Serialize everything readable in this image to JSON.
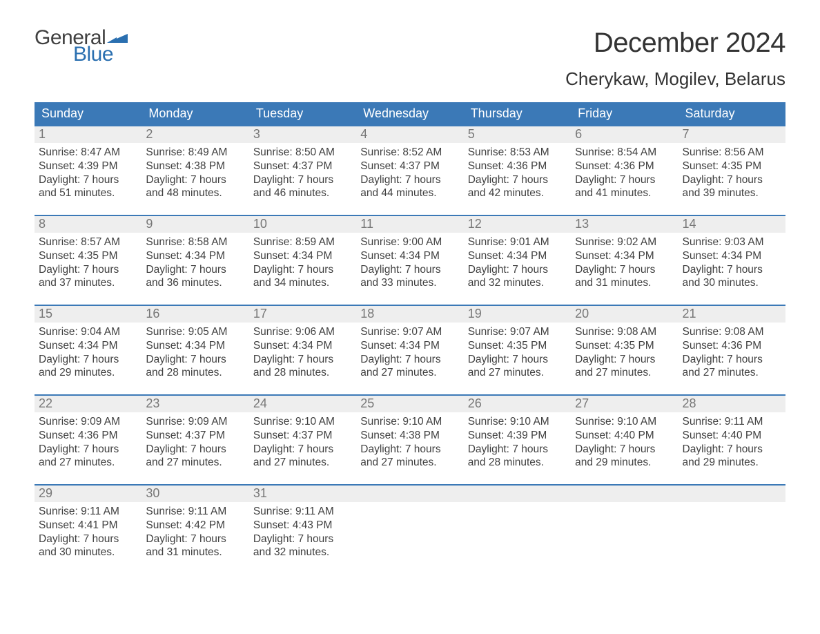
{
  "logo": {
    "general": "General",
    "blue": "Blue",
    "accent_color": "#2a6fb0"
  },
  "title": "December 2024",
  "location": "Cherykaw, Mogilev, Belarus",
  "colors": {
    "header_bg": "#3b79b7",
    "header_text": "#ffffff",
    "daynum_bg": "#eeeeee",
    "daynum_text": "#777777",
    "body_text": "#404040",
    "page_bg": "#ffffff",
    "week_border": "#3b79b7"
  },
  "fonts": {
    "title_size": 40,
    "location_size": 26,
    "dow_size": 18,
    "daynum_size": 18,
    "body_size": 15.5
  },
  "days_of_week": [
    "Sunday",
    "Monday",
    "Tuesday",
    "Wednesday",
    "Thursday",
    "Friday",
    "Saturday"
  ],
  "weeks": [
    [
      {
        "n": "1",
        "sunrise": "Sunrise: 8:47 AM",
        "sunset": "Sunset: 4:39 PM",
        "d1": "Daylight: 7 hours",
        "d2": "and 51 minutes."
      },
      {
        "n": "2",
        "sunrise": "Sunrise: 8:49 AM",
        "sunset": "Sunset: 4:38 PM",
        "d1": "Daylight: 7 hours",
        "d2": "and 48 minutes."
      },
      {
        "n": "3",
        "sunrise": "Sunrise: 8:50 AM",
        "sunset": "Sunset: 4:37 PM",
        "d1": "Daylight: 7 hours",
        "d2": "and 46 minutes."
      },
      {
        "n": "4",
        "sunrise": "Sunrise: 8:52 AM",
        "sunset": "Sunset: 4:37 PM",
        "d1": "Daylight: 7 hours",
        "d2": "and 44 minutes."
      },
      {
        "n": "5",
        "sunrise": "Sunrise: 8:53 AM",
        "sunset": "Sunset: 4:36 PM",
        "d1": "Daylight: 7 hours",
        "d2": "and 42 minutes."
      },
      {
        "n": "6",
        "sunrise": "Sunrise: 8:54 AM",
        "sunset": "Sunset: 4:36 PM",
        "d1": "Daylight: 7 hours",
        "d2": "and 41 minutes."
      },
      {
        "n": "7",
        "sunrise": "Sunrise: 8:56 AM",
        "sunset": "Sunset: 4:35 PM",
        "d1": "Daylight: 7 hours",
        "d2": "and 39 minutes."
      }
    ],
    [
      {
        "n": "8",
        "sunrise": "Sunrise: 8:57 AM",
        "sunset": "Sunset: 4:35 PM",
        "d1": "Daylight: 7 hours",
        "d2": "and 37 minutes."
      },
      {
        "n": "9",
        "sunrise": "Sunrise: 8:58 AM",
        "sunset": "Sunset: 4:34 PM",
        "d1": "Daylight: 7 hours",
        "d2": "and 36 minutes."
      },
      {
        "n": "10",
        "sunrise": "Sunrise: 8:59 AM",
        "sunset": "Sunset: 4:34 PM",
        "d1": "Daylight: 7 hours",
        "d2": "and 34 minutes."
      },
      {
        "n": "11",
        "sunrise": "Sunrise: 9:00 AM",
        "sunset": "Sunset: 4:34 PM",
        "d1": "Daylight: 7 hours",
        "d2": "and 33 minutes."
      },
      {
        "n": "12",
        "sunrise": "Sunrise: 9:01 AM",
        "sunset": "Sunset: 4:34 PM",
        "d1": "Daylight: 7 hours",
        "d2": "and 32 minutes."
      },
      {
        "n": "13",
        "sunrise": "Sunrise: 9:02 AM",
        "sunset": "Sunset: 4:34 PM",
        "d1": "Daylight: 7 hours",
        "d2": "and 31 minutes."
      },
      {
        "n": "14",
        "sunrise": "Sunrise: 9:03 AM",
        "sunset": "Sunset: 4:34 PM",
        "d1": "Daylight: 7 hours",
        "d2": "and 30 minutes."
      }
    ],
    [
      {
        "n": "15",
        "sunrise": "Sunrise: 9:04 AM",
        "sunset": "Sunset: 4:34 PM",
        "d1": "Daylight: 7 hours",
        "d2": "and 29 minutes."
      },
      {
        "n": "16",
        "sunrise": "Sunrise: 9:05 AM",
        "sunset": "Sunset: 4:34 PM",
        "d1": "Daylight: 7 hours",
        "d2": "and 28 minutes."
      },
      {
        "n": "17",
        "sunrise": "Sunrise: 9:06 AM",
        "sunset": "Sunset: 4:34 PM",
        "d1": "Daylight: 7 hours",
        "d2": "and 28 minutes."
      },
      {
        "n": "18",
        "sunrise": "Sunrise: 9:07 AM",
        "sunset": "Sunset: 4:34 PM",
        "d1": "Daylight: 7 hours",
        "d2": "and 27 minutes."
      },
      {
        "n": "19",
        "sunrise": "Sunrise: 9:07 AM",
        "sunset": "Sunset: 4:35 PM",
        "d1": "Daylight: 7 hours",
        "d2": "and 27 minutes."
      },
      {
        "n": "20",
        "sunrise": "Sunrise: 9:08 AM",
        "sunset": "Sunset: 4:35 PM",
        "d1": "Daylight: 7 hours",
        "d2": "and 27 minutes."
      },
      {
        "n": "21",
        "sunrise": "Sunrise: 9:08 AM",
        "sunset": "Sunset: 4:36 PM",
        "d1": "Daylight: 7 hours",
        "d2": "and 27 minutes."
      }
    ],
    [
      {
        "n": "22",
        "sunrise": "Sunrise: 9:09 AM",
        "sunset": "Sunset: 4:36 PM",
        "d1": "Daylight: 7 hours",
        "d2": "and 27 minutes."
      },
      {
        "n": "23",
        "sunrise": "Sunrise: 9:09 AM",
        "sunset": "Sunset: 4:37 PM",
        "d1": "Daylight: 7 hours",
        "d2": "and 27 minutes."
      },
      {
        "n": "24",
        "sunrise": "Sunrise: 9:10 AM",
        "sunset": "Sunset: 4:37 PM",
        "d1": "Daylight: 7 hours",
        "d2": "and 27 minutes."
      },
      {
        "n": "25",
        "sunrise": "Sunrise: 9:10 AM",
        "sunset": "Sunset: 4:38 PM",
        "d1": "Daylight: 7 hours",
        "d2": "and 27 minutes."
      },
      {
        "n": "26",
        "sunrise": "Sunrise: 9:10 AM",
        "sunset": "Sunset: 4:39 PM",
        "d1": "Daylight: 7 hours",
        "d2": "and 28 minutes."
      },
      {
        "n": "27",
        "sunrise": "Sunrise: 9:10 AM",
        "sunset": "Sunset: 4:40 PM",
        "d1": "Daylight: 7 hours",
        "d2": "and 29 minutes."
      },
      {
        "n": "28",
        "sunrise": "Sunrise: 9:11 AM",
        "sunset": "Sunset: 4:40 PM",
        "d1": "Daylight: 7 hours",
        "d2": "and 29 minutes."
      }
    ],
    [
      {
        "n": "29",
        "sunrise": "Sunrise: 9:11 AM",
        "sunset": "Sunset: 4:41 PM",
        "d1": "Daylight: 7 hours",
        "d2": "and 30 minutes."
      },
      {
        "n": "30",
        "sunrise": "Sunrise: 9:11 AM",
        "sunset": "Sunset: 4:42 PM",
        "d1": "Daylight: 7 hours",
        "d2": "and 31 minutes."
      },
      {
        "n": "31",
        "sunrise": "Sunrise: 9:11 AM",
        "sunset": "Sunset: 4:43 PM",
        "d1": "Daylight: 7 hours",
        "d2": "and 32 minutes."
      },
      null,
      null,
      null,
      null
    ]
  ]
}
